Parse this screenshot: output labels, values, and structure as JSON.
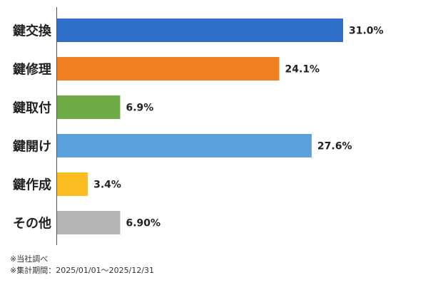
{
  "chart_data": {
    "type": "bar",
    "orientation": "horizontal",
    "categories": [
      "鍵交換",
      "鍵修理",
      "鍵取付",
      "鍵開け",
      "鍵作成",
      "その他"
    ],
    "values": [
      31.0,
      24.1,
      6.9,
      27.6,
      3.4,
      6.9
    ],
    "value_labels": [
      "31.0%",
      "24.1%",
      "6.9%",
      "27.6%",
      "3.4%",
      "6.90%"
    ],
    "colors": [
      "#2f6ec9",
      "#f07f22",
      "#6eaa45",
      "#5ca1dc",
      "#fcbd22",
      "#b5b5b5"
    ],
    "xlim": [
      0,
      31.0
    ],
    "grid": false,
    "legend": "none"
  },
  "notes": {
    "source": "※当社調べ",
    "period": "※集計期間：2025/01/01〜2025/12/31"
  }
}
